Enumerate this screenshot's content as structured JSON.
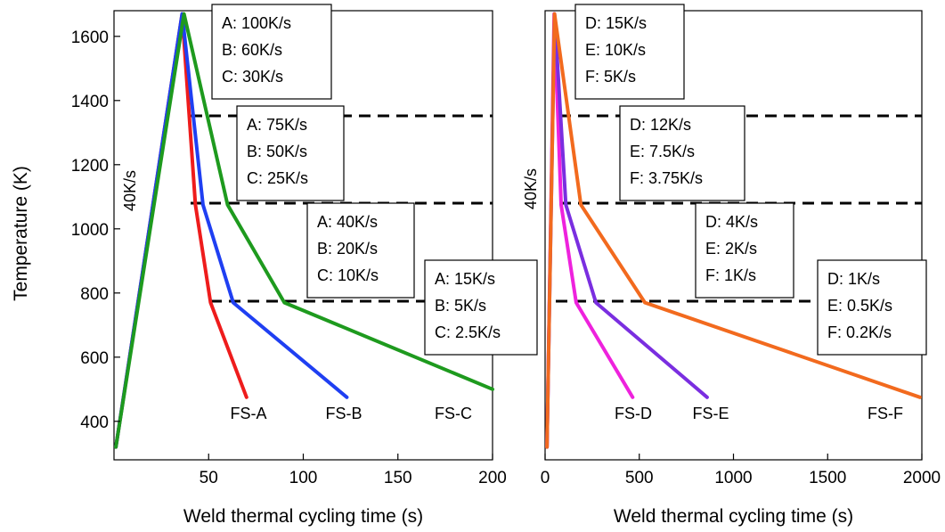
{
  "chart_data": [
    {
      "type": "line",
      "xlabel": "Weld thermal cycling time (s)",
      "ylabel": "Temperature (K)",
      "xlim": [
        0,
        200
      ],
      "ylim": [
        280,
        1680
      ],
      "xticks": [
        50,
        100,
        150,
        200
      ],
      "yticks": [
        400,
        600,
        800,
        1000,
        1200,
        1400,
        1600
      ],
      "reference_lines_y": [
        1350,
        1075,
        770
      ],
      "heating_label": "40K/s",
      "series": [
        {
          "name": "FS-A",
          "color": "#ee1c1c",
          "x": [
            1,
            36,
            43,
            51,
            70
          ],
          "y": [
            320,
            1670,
            1075,
            770,
            475
          ]
        },
        {
          "name": "FS-B",
          "color": "#1f3ff2",
          "x": [
            1,
            36,
            47,
            63,
            123
          ],
          "y": [
            320,
            1670,
            1075,
            770,
            475
          ]
        },
        {
          "name": "FS-C",
          "color": "#1e9a1e",
          "x": [
            1,
            37,
            60,
            90,
            200
          ],
          "y": [
            320,
            1670,
            1075,
            770,
            500
          ]
        }
      ],
      "annotations": [
        {
          "lines": [
            "A: 100K/s",
            "B: 60K/s",
            "C: 30K/s"
          ]
        },
        {
          "lines": [
            "A: 75K/s",
            "B: 50K/s",
            "C: 25K/s"
          ]
        },
        {
          "lines": [
            "A: 40K/s",
            "B: 20K/s",
            "C: 10K/s"
          ]
        },
        {
          "lines": [
            "A: 15K/s",
            "B: 5K/s",
            "C: 2.5K/s"
          ]
        }
      ]
    },
    {
      "type": "line",
      "xlabel": "Weld thermal cycling time (s)",
      "ylabel": "",
      "xlim": [
        0,
        2000
      ],
      "ylim": [
        280,
        1680
      ],
      "xticks": [
        0,
        500,
        1000,
        1500,
        2000
      ],
      "yticks": [],
      "reference_lines_y": [
        1350,
        1075,
        770
      ],
      "heating_label": "40K/s",
      "series": [
        {
          "name": "FS-D",
          "color": "#ee22dd",
          "x": [
            10,
            48,
            85,
            165,
            465
          ],
          "y": [
            320,
            1670,
            1075,
            770,
            475
          ]
        },
        {
          "name": "FS-E",
          "color": "#7a2ee0",
          "x": [
            10,
            50,
            110,
            270,
            860
          ],
          "y": [
            320,
            1670,
            1075,
            770,
            475
          ]
        },
        {
          "name": "FS-F",
          "color": "#f26a1e",
          "x": [
            10,
            50,
            190,
            530,
            1990
          ],
          "y": [
            320,
            1670,
            1075,
            770,
            475
          ]
        }
      ],
      "annotations": [
        {
          "lines": [
            "D: 15K/s",
            "E: 10K/s",
            "F: 5K/s"
          ]
        },
        {
          "lines": [
            "D: 12K/s",
            "E: 7.5K/s",
            "F: 3.75K/s"
          ]
        },
        {
          "lines": [
            "D: 4K/s",
            "E: 2K/s",
            "F: 1K/s"
          ]
        },
        {
          "lines": [
            "D: 1K/s",
            "E: 0.5K/s",
            "F: 0.2K/s"
          ]
        }
      ]
    }
  ]
}
